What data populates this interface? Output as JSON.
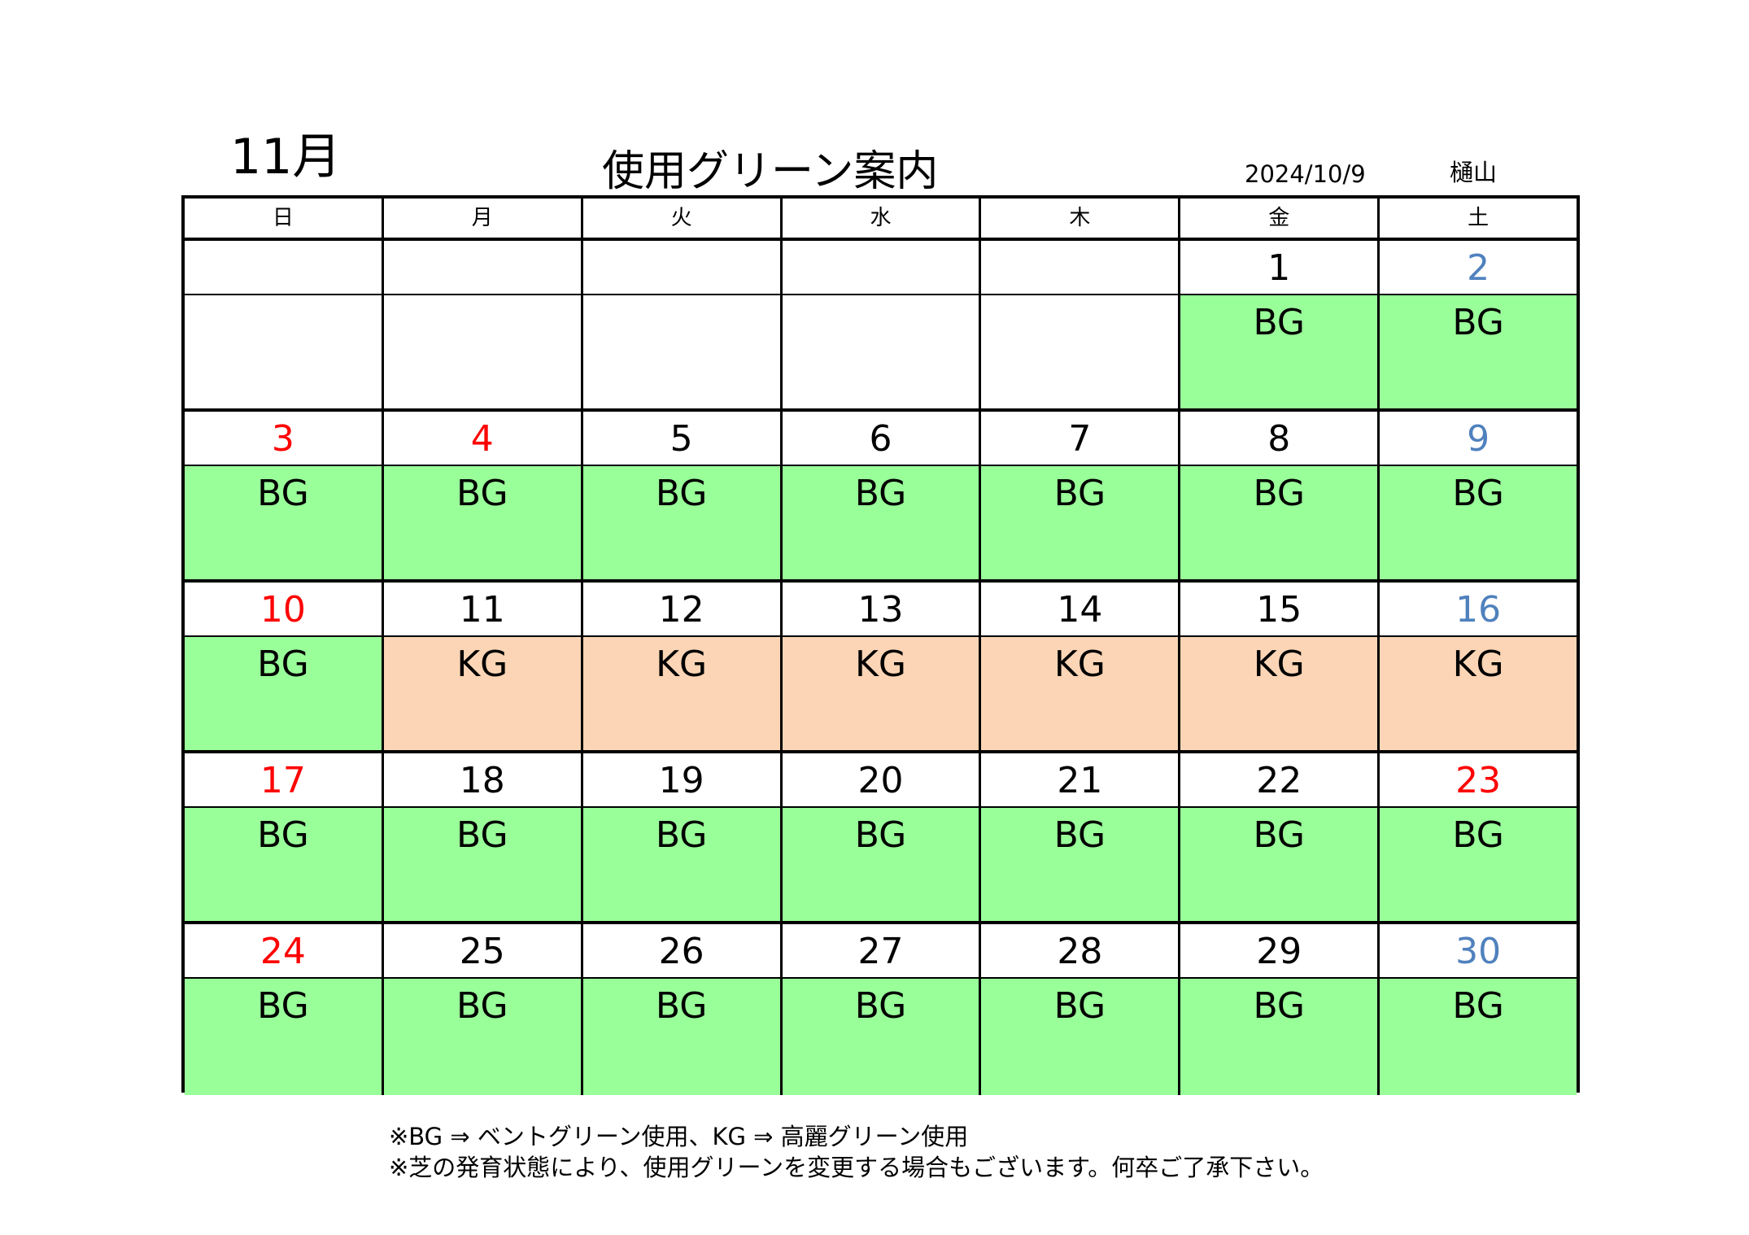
{
  "header": {
    "month": "11月",
    "title": "使用グリーン案内",
    "date": "2024/10/9",
    "author": "樋山"
  },
  "weekdays": [
    "日",
    "月",
    "火",
    "水",
    "木",
    "金",
    "土"
  ],
  "colors": {
    "bg_green": "#99ff99",
    "kg_peach": "#fbd5b5",
    "holiday_red": "#ff0000",
    "saturday_blue": "#4f81bd"
  },
  "weeks": [
    [
      {
        "day": "",
        "usage": "",
        "type": "",
        "color": ""
      },
      {
        "day": "",
        "usage": "",
        "type": "",
        "color": ""
      },
      {
        "day": "",
        "usage": "",
        "type": "",
        "color": ""
      },
      {
        "day": "",
        "usage": "",
        "type": "",
        "color": ""
      },
      {
        "day": "",
        "usage": "",
        "type": "",
        "color": ""
      },
      {
        "day": "1",
        "usage": "BG",
        "type": "bg",
        "color": ""
      },
      {
        "day": "2",
        "usage": "BG",
        "type": "bg",
        "color": "blue"
      }
    ],
    [
      {
        "day": "3",
        "usage": "BG",
        "type": "bg",
        "color": "red"
      },
      {
        "day": "4",
        "usage": "BG",
        "type": "bg",
        "color": "red"
      },
      {
        "day": "5",
        "usage": "BG",
        "type": "bg",
        "color": ""
      },
      {
        "day": "6",
        "usage": "BG",
        "type": "bg",
        "color": ""
      },
      {
        "day": "7",
        "usage": "BG",
        "type": "bg",
        "color": ""
      },
      {
        "day": "8",
        "usage": "BG",
        "type": "bg",
        "color": ""
      },
      {
        "day": "9",
        "usage": "BG",
        "type": "bg",
        "color": "blue"
      }
    ],
    [
      {
        "day": "10",
        "usage": "BG",
        "type": "bg",
        "color": "red"
      },
      {
        "day": "11",
        "usage": "KG",
        "type": "kg",
        "color": ""
      },
      {
        "day": "12",
        "usage": "KG",
        "type": "kg",
        "color": ""
      },
      {
        "day": "13",
        "usage": "KG",
        "type": "kg",
        "color": ""
      },
      {
        "day": "14",
        "usage": "KG",
        "type": "kg",
        "color": ""
      },
      {
        "day": "15",
        "usage": "KG",
        "type": "kg",
        "color": ""
      },
      {
        "day": "16",
        "usage": "KG",
        "type": "kg",
        "color": "blue"
      }
    ],
    [
      {
        "day": "17",
        "usage": "BG",
        "type": "bg",
        "color": "red"
      },
      {
        "day": "18",
        "usage": "BG",
        "type": "bg",
        "color": ""
      },
      {
        "day": "19",
        "usage": "BG",
        "type": "bg",
        "color": ""
      },
      {
        "day": "20",
        "usage": "BG",
        "type": "bg",
        "color": ""
      },
      {
        "day": "21",
        "usage": "BG",
        "type": "bg",
        "color": ""
      },
      {
        "day": "22",
        "usage": "BG",
        "type": "bg",
        "color": ""
      },
      {
        "day": "23",
        "usage": "BG",
        "type": "bg",
        "color": "red"
      }
    ],
    [
      {
        "day": "24",
        "usage": "BG",
        "type": "bg",
        "color": "red"
      },
      {
        "day": "25",
        "usage": "BG",
        "type": "bg",
        "color": ""
      },
      {
        "day": "26",
        "usage": "BG",
        "type": "bg",
        "color": ""
      },
      {
        "day": "27",
        "usage": "BG",
        "type": "bg",
        "color": ""
      },
      {
        "day": "28",
        "usage": "BG",
        "type": "bg",
        "color": ""
      },
      {
        "day": "29",
        "usage": "BG",
        "type": "bg",
        "color": ""
      },
      {
        "day": "30",
        "usage": "BG",
        "type": "bg",
        "color": "blue"
      }
    ]
  ],
  "notes": [
    "※BG ⇒ ベントグリーン使用、KG ⇒ 高麗グリーン使用",
    "※芝の発育状態により、使用グリーンを変更する場合もございます。何卒ご了承下さい。"
  ]
}
